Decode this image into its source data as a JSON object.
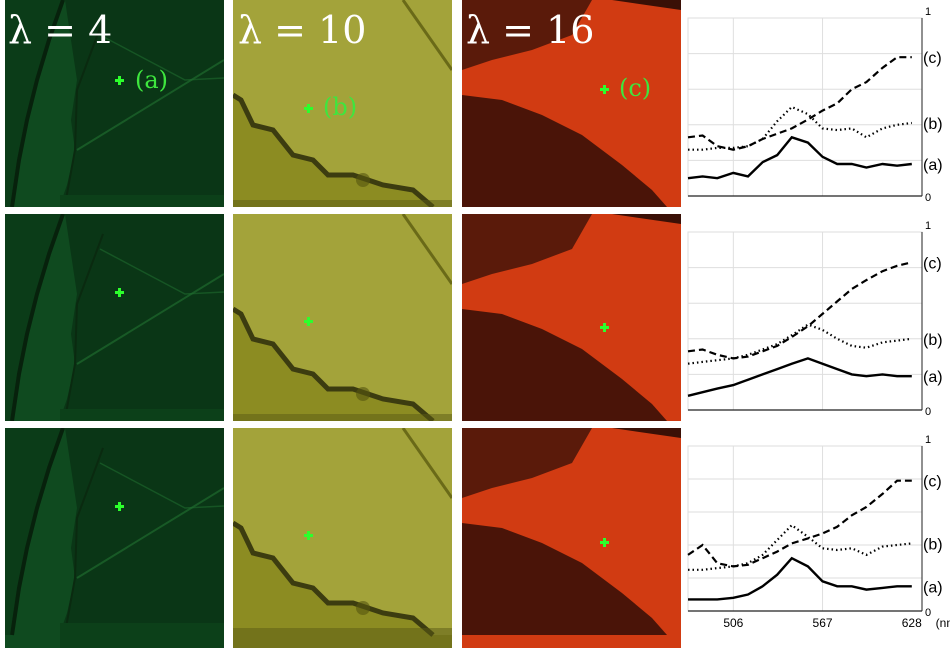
{
  "bands": [
    {
      "lambda_label": "λ = 4",
      "color": "#0a3a14"
    },
    {
      "lambda_label": "λ = 10",
      "color": "#8a8a1c"
    },
    {
      "lambda_label": "λ = 16",
      "color": "#d2380f"
    }
  ],
  "point_labels": [
    "(a)",
    "(b)",
    "(c)"
  ],
  "marker_color": "#2cff2c",
  "chart_data": [
    {
      "type": "line",
      "x": [
        475,
        485,
        495,
        506,
        516,
        526,
        536,
        546,
        557,
        567,
        577,
        587,
        597,
        608,
        618,
        628
      ],
      "xlim": [
        475,
        635
      ],
      "ylim": [
        0,
        1
      ],
      "xticks": [],
      "yticks": [
        "0",
        "1"
      ],
      "series": [
        {
          "name": "(a)",
          "style": "solid",
          "values": [
            0.1,
            0.11,
            0.1,
            0.13,
            0.11,
            0.19,
            0.23,
            0.33,
            0.3,
            0.22,
            0.18,
            0.18,
            0.16,
            0.18,
            0.17,
            0.18
          ]
        },
        {
          "name": "(b)",
          "style": "dotted",
          "values": [
            0.26,
            0.26,
            0.27,
            0.27,
            0.28,
            0.32,
            0.42,
            0.5,
            0.46,
            0.38,
            0.37,
            0.38,
            0.33,
            0.38,
            0.4,
            0.41
          ]
        },
        {
          "name": "(c)",
          "style": "dashed",
          "values": [
            0.33,
            0.34,
            0.28,
            0.26,
            0.28,
            0.32,
            0.35,
            0.38,
            0.43,
            0.48,
            0.52,
            0.6,
            0.64,
            0.72,
            0.78,
            0.78
          ]
        }
      ],
      "grid": true
    },
    {
      "type": "line",
      "x": [
        475,
        485,
        495,
        506,
        516,
        526,
        536,
        546,
        557,
        567,
        577,
        587,
        597,
        608,
        618,
        628
      ],
      "xlim": [
        475,
        635
      ],
      "ylim": [
        0,
        1
      ],
      "xticks": [],
      "yticks": [
        "0",
        "1"
      ],
      "series": [
        {
          "name": "(a)",
          "style": "solid",
          "values": [
            0.08,
            0.1,
            0.12,
            0.14,
            0.17,
            0.2,
            0.23,
            0.26,
            0.29,
            0.26,
            0.23,
            0.2,
            0.19,
            0.2,
            0.19,
            0.19
          ]
        },
        {
          "name": "(b)",
          "style": "dotted",
          "values": [
            0.26,
            0.27,
            0.28,
            0.29,
            0.31,
            0.34,
            0.37,
            0.42,
            0.48,
            0.45,
            0.4,
            0.36,
            0.35,
            0.38,
            0.39,
            0.4
          ]
        },
        {
          "name": "(c)",
          "style": "dashed",
          "values": [
            0.33,
            0.34,
            0.31,
            0.29,
            0.3,
            0.33,
            0.36,
            0.41,
            0.47,
            0.54,
            0.61,
            0.68,
            0.73,
            0.78,
            0.81,
            0.83
          ]
        }
      ],
      "grid": true
    },
    {
      "type": "line",
      "x": [
        475,
        485,
        495,
        506,
        516,
        526,
        536,
        546,
        557,
        567,
        577,
        587,
        597,
        608,
        618,
        628
      ],
      "xlim": [
        475,
        635
      ],
      "ylim": [
        0,
        1
      ],
      "xticks": [
        506,
        567,
        628
      ],
      "xtick_labels": [
        "506",
        "567",
        "628"
      ],
      "xunit": "(nm)",
      "yticks": [
        "0",
        "1"
      ],
      "series": [
        {
          "name": "(a)",
          "style": "solid",
          "values": [
            0.07,
            0.07,
            0.07,
            0.08,
            0.1,
            0.15,
            0.22,
            0.32,
            0.27,
            0.18,
            0.15,
            0.15,
            0.13,
            0.14,
            0.15,
            0.15
          ]
        },
        {
          "name": "(b)",
          "style": "dotted",
          "values": [
            0.25,
            0.25,
            0.26,
            0.27,
            0.29,
            0.34,
            0.43,
            0.52,
            0.45,
            0.38,
            0.37,
            0.38,
            0.34,
            0.39,
            0.4,
            0.41
          ]
        },
        {
          "name": "(c)",
          "style": "dashed",
          "values": [
            0.34,
            0.4,
            0.29,
            0.27,
            0.28,
            0.32,
            0.36,
            0.41,
            0.44,
            0.47,
            0.51,
            0.58,
            0.63,
            0.71,
            0.79,
            0.79
          ]
        }
      ],
      "grid": true
    }
  ]
}
